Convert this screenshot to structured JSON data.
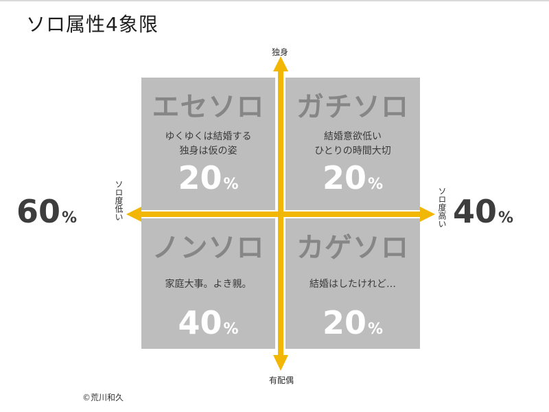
{
  "title": "ソロ属性4象限",
  "axes": {
    "top": "独身",
    "bottom": "有配偶",
    "left": "ソロ度低い",
    "right": "ソロ度高い"
  },
  "side_percents": {
    "left": {
      "value": "60",
      "unit": "%"
    },
    "right": {
      "value": "40",
      "unit": "%"
    }
  },
  "quadrants": [
    {
      "position": "top-left",
      "name": "エセソロ",
      "desc": [
        "ゆくゆくは結婚する",
        "独身は仮の姿"
      ],
      "value": "20",
      "unit": "%"
    },
    {
      "position": "top-right",
      "name": "ガチソロ",
      "desc": [
        "結婚意欲低い",
        "ひとりの時間大切"
      ],
      "value": "20",
      "unit": "%"
    },
    {
      "position": "bottom-left",
      "name": "ノンソロ",
      "desc": [
        "家庭大事。よき親。"
      ],
      "value": "40",
      "unit": "%"
    },
    {
      "position": "bottom-right",
      "name": "カゲソロ",
      "desc": [
        "結婚はしたけれど…"
      ],
      "value": "20",
      "unit": "%"
    }
  ],
  "credit": "©荒川和久",
  "colors": {
    "axis_arrow": "#f2b705",
    "quadrant_fill": "#bdbdbd",
    "quadrant_name": "#868686",
    "quadrant_percent": "#ffffff",
    "side_percent": "#3d3d3d"
  }
}
